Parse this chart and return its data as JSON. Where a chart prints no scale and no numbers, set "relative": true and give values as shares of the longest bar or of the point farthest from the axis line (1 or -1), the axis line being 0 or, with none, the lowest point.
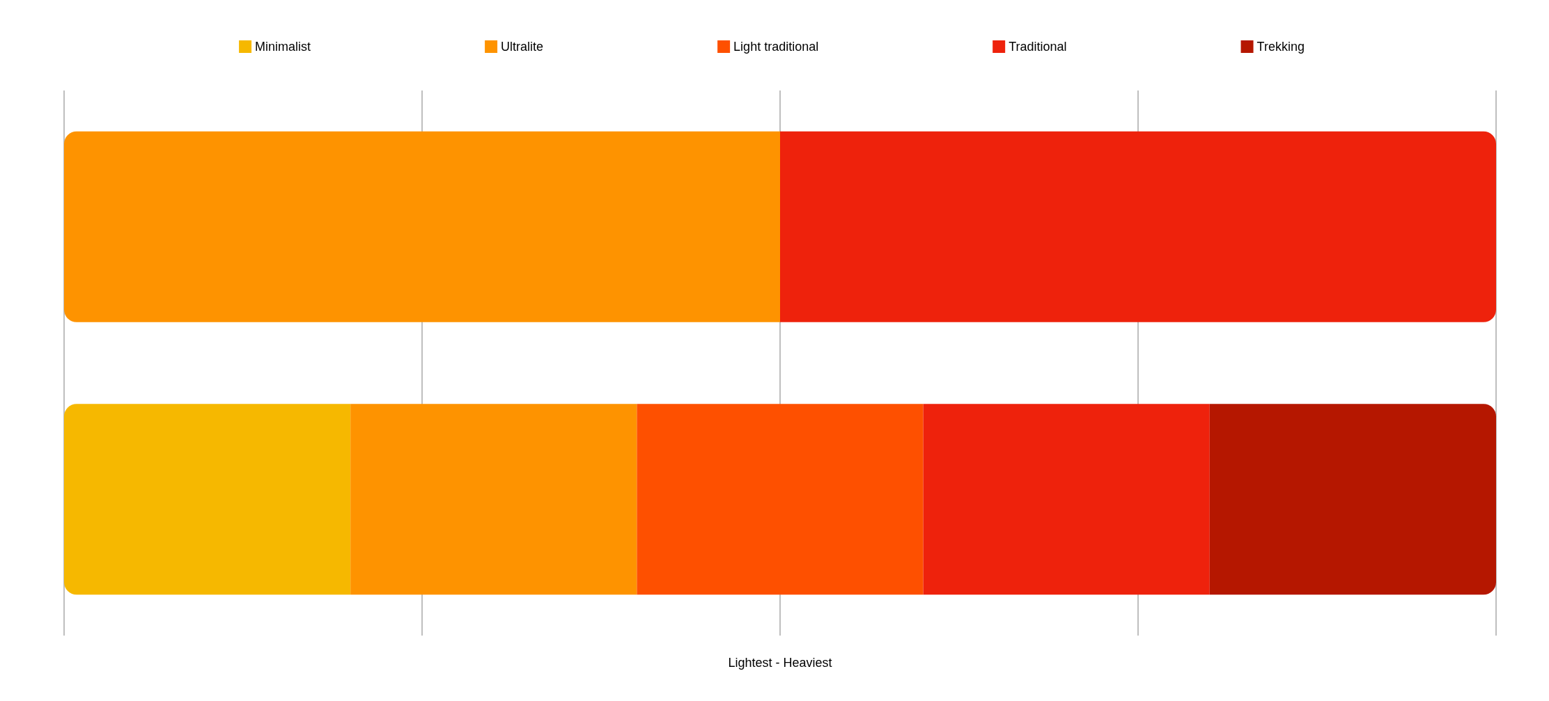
{
  "chart_data": {
    "type": "bar",
    "orientation": "horizontal",
    "stacked": true,
    "relative": true,
    "categories": [
      null,
      null
    ],
    "xlabel": "Lightest - Heaviest",
    "legend": "top",
    "grid": "x",
    "series": [
      {
        "name": "Minimalist",
        "color": "#f6b800",
        "values": [
          null,
          0.2
        ]
      },
      {
        "name": "Ultralite",
        "color": "#fe9300",
        "values": [
          0.5,
          0.2
        ]
      },
      {
        "name": "Light traditional",
        "color": "#fe5000",
        "values": [
          null,
          0.2
        ]
      },
      {
        "name": "Traditional",
        "color": "#ee220c",
        "values": [
          0.5,
          0.2
        ]
      },
      {
        "name": "Trekking",
        "color": "#b51700",
        "values": [
          null,
          0.2
        ]
      }
    ]
  }
}
